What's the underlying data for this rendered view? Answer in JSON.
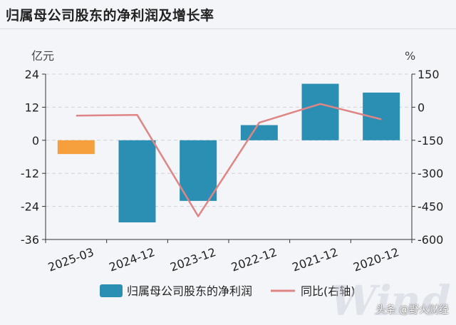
{
  "page": {
    "title": "归属母公司股东的净利润及增长率",
    "watermark": "Wind",
    "credit": "头条 @野火财经"
  },
  "chart_data": {
    "type": "bar",
    "categories": [
      "2025-03",
      "2024-12",
      "2023-12",
      "2022-12",
      "2021-12",
      "2020-12"
    ],
    "series": [
      {
        "name": "归属母公司股东的净利润",
        "type": "bar",
        "axis": "left",
        "values": [
          -5.0,
          -29.8,
          -22.0,
          5.5,
          20.5,
          17.3
        ],
        "colors": [
          "#f5a03c",
          "#2a8fb2",
          "#2a8fb2",
          "#2a8fb2",
          "#2a8fb2",
          "#2a8fb2"
        ]
      },
      {
        "name": "同比(右轴)",
        "type": "line",
        "axis": "right",
        "values": [
          -38,
          -35,
          -495,
          -70,
          15,
          -55
        ],
        "color": "#e08585"
      }
    ],
    "y_left": {
      "label": "亿元",
      "ylim": [
        -36,
        24
      ],
      "ticks": [
        24,
        12,
        0,
        -12,
        -24,
        -36
      ]
    },
    "y_right": {
      "label": "%",
      "ylim": [
        -600,
        150
      ],
      "ticks": [
        150,
        0,
        -150,
        -300,
        -450,
        -600
      ]
    },
    "legend": {
      "position": "bottom"
    },
    "grid": true
  }
}
